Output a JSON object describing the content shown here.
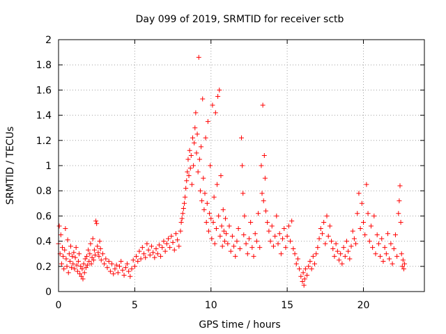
{
  "chart_data": {
    "type": "scatter",
    "title": "Day 099 of 2019, SRMTID for receiver sctb",
    "xlabel": "GPS time / hours",
    "ylabel": "SRMTID / TECUs",
    "xlim": [
      0,
      24
    ],
    "ylim": [
      0,
      2
    ],
    "xticks": [
      0,
      5,
      10,
      15,
      20
    ],
    "xtick_labels": [
      "0",
      "5",
      "10",
      "15",
      "20"
    ],
    "yticks": [
      0,
      0.2,
      0.4,
      0.6,
      0.8,
      1,
      1.2,
      1.4,
      1.6,
      1.8,
      2
    ],
    "ytick_labels": [
      "0",
      "0.2",
      "0.4",
      "0.6",
      "0.8",
      "1",
      "1.2",
      "1.4",
      "1.6",
      "1.8",
      "2"
    ],
    "grid": true,
    "marker": "+",
    "color": "#ff0000",
    "series": [
      {
        "name": "SRMTID",
        "points": [
          [
            0.0,
            0.38
          ],
          [
            0.05,
            0.52
          ],
          [
            0.1,
            0.3
          ],
          [
            0.15,
            0.45
          ],
          [
            0.2,
            0.22
          ],
          [
            0.25,
            0.35
          ],
          [
            0.3,
            0.28
          ],
          [
            0.35,
            0.18
          ],
          [
            0.4,
            0.33
          ],
          [
            0.45,
            0.5
          ],
          [
            0.5,
            0.26
          ],
          [
            0.55,
            0.2
          ],
          [
            0.6,
            0.41
          ],
          [
            0.65,
            0.15
          ],
          [
            0.7,
            0.3
          ],
          [
            0.75,
            0.24
          ],
          [
            0.8,
            0.36
          ],
          [
            0.85,
            0.19
          ],
          [
            0.9,
            0.28
          ],
          [
            0.95,
            0.22
          ],
          [
            1.0,
            0.31
          ],
          [
            1.05,
            0.18
          ],
          [
            1.1,
            0.27
          ],
          [
            1.15,
            0.35
          ],
          [
            1.2,
            0.21
          ],
          [
            1.25,
            0.16
          ],
          [
            1.3,
            0.24
          ],
          [
            1.35,
            0.3
          ],
          [
            1.4,
            0.14
          ],
          [
            1.45,
            0.2
          ],
          [
            1.5,
            0.12
          ],
          [
            1.55,
            0.18
          ],
          [
            1.6,
            0.1
          ],
          [
            1.65,
            0.22
          ],
          [
            1.7,
            0.15
          ],
          [
            1.75,
            0.26
          ],
          [
            1.8,
            0.19
          ],
          [
            1.85,
            0.28
          ],
          [
            1.9,
            0.21
          ],
          [
            1.95,
            0.33
          ],
          [
            2.0,
            0.24
          ],
          [
            2.05,
            0.3
          ],
          [
            2.1,
            0.38
          ],
          [
            2.15,
            0.22
          ],
          [
            2.2,
            0.27
          ],
          [
            2.25,
            0.42
          ],
          [
            2.3,
            0.25
          ],
          [
            2.35,
            0.33
          ],
          [
            2.4,
            0.29
          ],
          [
            2.45,
            0.56
          ],
          [
            2.5,
            0.54
          ],
          [
            2.55,
            0.36
          ],
          [
            2.6,
            0.31
          ],
          [
            2.65,
            0.28
          ],
          [
            2.7,
            0.4
          ],
          [
            2.75,
            0.34
          ],
          [
            2.8,
            0.25
          ],
          [
            2.9,
            0.3
          ],
          [
            3.0,
            0.22
          ],
          [
            3.1,
            0.26
          ],
          [
            3.2,
            0.19
          ],
          [
            3.3,
            0.24
          ],
          [
            3.4,
            0.16
          ],
          [
            3.5,
            0.22
          ],
          [
            3.6,
            0.14
          ],
          [
            3.7,
            0.18
          ],
          [
            3.8,
            0.21
          ],
          [
            3.9,
            0.15
          ],
          [
            4.0,
            0.2
          ],
          [
            4.1,
            0.24
          ],
          [
            4.2,
            0.17
          ],
          [
            4.3,
            0.13
          ],
          [
            4.4,
            0.19
          ],
          [
            4.5,
            0.22
          ],
          [
            4.6,
            0.16
          ],
          [
            4.7,
            0.12
          ],
          [
            4.8,
            0.18
          ],
          [
            4.9,
            0.25
          ],
          [
            5.0,
            0.2
          ],
          [
            5.1,
            0.28
          ],
          [
            5.2,
            0.24
          ],
          [
            5.3,
            0.32
          ],
          [
            5.4,
            0.26
          ],
          [
            5.5,
            0.35
          ],
          [
            5.6,
            0.3
          ],
          [
            5.7,
            0.27
          ],
          [
            5.8,
            0.38
          ],
          [
            5.9,
            0.33
          ],
          [
            6.0,
            0.29
          ],
          [
            6.1,
            0.36
          ],
          [
            6.2,
            0.31
          ],
          [
            6.3,
            0.27
          ],
          [
            6.4,
            0.34
          ],
          [
            6.5,
            0.3
          ],
          [
            6.6,
            0.37
          ],
          [
            6.7,
            0.28
          ],
          [
            6.8,
            0.35
          ],
          [
            6.9,
            0.4
          ],
          [
            7.0,
            0.32
          ],
          [
            7.1,
            0.38
          ],
          [
            7.2,
            0.42
          ],
          [
            7.3,
            0.35
          ],
          [
            7.4,
            0.44
          ],
          [
            7.5,
            0.39
          ],
          [
            7.6,
            0.33
          ],
          [
            7.7,
            0.46
          ],
          [
            7.8,
            0.41
          ],
          [
            7.9,
            0.36
          ],
          [
            8.0,
            0.48
          ],
          [
            8.05,
            0.55
          ],
          [
            8.1,
            0.58
          ],
          [
            8.15,
            0.62
          ],
          [
            8.2,
            0.66
          ],
          [
            8.25,
            0.7
          ],
          [
            8.3,
            0.75
          ],
          [
            8.35,
            0.82
          ],
          [
            8.4,
            0.88
          ],
          [
            8.45,
            0.95
          ],
          [
            8.5,
            1.05
          ],
          [
            8.55,
            0.92
          ],
          [
            8.6,
            1.12
          ],
          [
            8.65,
            0.98
          ],
          [
            8.7,
            1.08
          ],
          [
            8.75,
            0.85
          ],
          [
            8.8,
            1.22
          ],
          [
            8.85,
            1.0
          ],
          [
            8.9,
            1.18
          ],
          [
            8.95,
            1.3
          ],
          [
            9.0,
            1.42
          ],
          [
            9.05,
            1.1
          ],
          [
            9.1,
            1.25
          ],
          [
            9.15,
            0.95
          ],
          [
            9.2,
            1.86
          ],
          [
            9.25,
            1.05
          ],
          [
            9.3,
            0.8
          ],
          [
            9.35,
            1.15
          ],
          [
            9.4,
            0.72
          ],
          [
            9.45,
            1.53
          ],
          [
            9.5,
            0.9
          ],
          [
            9.55,
            0.65
          ],
          [
            9.6,
            0.78
          ],
          [
            9.65,
            1.22
          ],
          [
            9.7,
            0.55
          ],
          [
            9.75,
            0.7
          ],
          [
            9.8,
            1.35
          ],
          [
            9.85,
            0.48
          ],
          [
            9.9,
            0.62
          ],
          [
            9.95,
            1.0
          ],
          [
            10.0,
            0.58
          ],
          [
            10.05,
            0.42
          ],
          [
            10.1,
            1.48
          ],
          [
            10.15,
            0.55
          ],
          [
            10.2,
            0.75
          ],
          [
            10.25,
            0.38
          ],
          [
            10.3,
            1.42
          ],
          [
            10.35,
            0.5
          ],
          [
            10.4,
            0.85
          ],
          [
            10.45,
            1.55
          ],
          [
            10.5,
            0.6
          ],
          [
            10.55,
            1.6
          ],
          [
            10.6,
            0.44
          ],
          [
            10.65,
            0.92
          ],
          [
            10.7,
            0.52
          ],
          [
            10.75,
            0.36
          ],
          [
            10.8,
            0.65
          ],
          [
            10.85,
            0.48
          ],
          [
            10.9,
            0.4
          ],
          [
            10.95,
            0.58
          ],
          [
            11.0,
            0.46
          ],
          [
            11.1,
            0.38
          ],
          [
            11.2,
            0.52
          ],
          [
            11.3,
            0.32
          ],
          [
            11.4,
            0.44
          ],
          [
            11.5,
            0.36
          ],
          [
            11.6,
            0.28
          ],
          [
            11.7,
            0.4
          ],
          [
            11.8,
            0.5
          ],
          [
            11.9,
            0.34
          ],
          [
            12.0,
            1.22
          ],
          [
            12.05,
            1.0
          ],
          [
            12.1,
            0.78
          ],
          [
            12.15,
            0.45
          ],
          [
            12.2,
            0.6
          ],
          [
            12.3,
            0.38
          ],
          [
            12.4,
            0.3
          ],
          [
            12.5,
            0.42
          ],
          [
            12.6,
            0.55
          ],
          [
            12.7,
            0.35
          ],
          [
            12.8,
            0.28
          ],
          [
            12.9,
            0.46
          ],
          [
            13.0,
            0.4
          ],
          [
            13.1,
            0.62
          ],
          [
            13.2,
            0.35
          ],
          [
            13.3,
            1.0
          ],
          [
            13.35,
            0.78
          ],
          [
            13.4,
            1.48
          ],
          [
            13.45,
            0.72
          ],
          [
            13.5,
            1.08
          ],
          [
            13.55,
            0.9
          ],
          [
            13.6,
            0.64
          ],
          [
            13.7,
            0.55
          ],
          [
            13.8,
            0.48
          ],
          [
            13.9,
            0.4
          ],
          [
            14.0,
            0.52
          ],
          [
            14.1,
            0.36
          ],
          [
            14.2,
            0.44
          ],
          [
            14.3,
            0.6
          ],
          [
            14.4,
            0.38
          ],
          [
            14.5,
            0.46
          ],
          [
            14.6,
            0.3
          ],
          [
            14.7,
            0.42
          ],
          [
            14.8,
            0.5
          ],
          [
            14.9,
            0.35
          ],
          [
            15.0,
            0.44
          ],
          [
            15.1,
            0.52
          ],
          [
            15.2,
            0.4
          ],
          [
            15.3,
            0.56
          ],
          [
            15.4,
            0.34
          ],
          [
            15.5,
            0.3
          ],
          [
            15.6,
            0.22
          ],
          [
            15.7,
            0.26
          ],
          [
            15.8,
            0.18
          ],
          [
            15.9,
            0.12
          ],
          [
            16.0,
            0.08
          ],
          [
            16.05,
            0.15
          ],
          [
            16.1,
            0.05
          ],
          [
            16.15,
            0.1
          ],
          [
            16.2,
            0.18
          ],
          [
            16.3,
            0.13
          ],
          [
            16.4,
            0.2
          ],
          [
            16.5,
            0.24
          ],
          [
            16.6,
            0.18
          ],
          [
            16.7,
            0.28
          ],
          [
            16.8,
            0.22
          ],
          [
            16.9,
            0.3
          ],
          [
            17.0,
            0.35
          ],
          [
            17.1,
            0.42
          ],
          [
            17.2,
            0.5
          ],
          [
            17.3,
            0.46
          ],
          [
            17.4,
            0.55
          ],
          [
            17.5,
            0.38
          ],
          [
            17.6,
            0.6
          ],
          [
            17.7,
            0.44
          ],
          [
            17.8,
            0.52
          ],
          [
            17.9,
            0.4
          ],
          [
            18.0,
            0.34
          ],
          [
            18.1,
            0.28
          ],
          [
            18.2,
            0.38
          ],
          [
            18.3,
            0.32
          ],
          [
            18.4,
            0.25
          ],
          [
            18.5,
            0.3
          ],
          [
            18.6,
            0.22
          ],
          [
            18.7,
            0.35
          ],
          [
            18.8,
            0.28
          ],
          [
            18.9,
            0.4
          ],
          [
            19.0,
            0.32
          ],
          [
            19.1,
            0.26
          ],
          [
            19.2,
            0.36
          ],
          [
            19.3,
            0.48
          ],
          [
            19.4,
            0.42
          ],
          [
            19.5,
            0.38
          ],
          [
            19.6,
            0.62
          ],
          [
            19.7,
            0.78
          ],
          [
            19.8,
            0.5
          ],
          [
            19.9,
            0.7
          ],
          [
            20.0,
            0.55
          ],
          [
            20.1,
            0.45
          ],
          [
            20.2,
            0.85
          ],
          [
            20.3,
            0.62
          ],
          [
            20.4,
            0.4
          ],
          [
            20.5,
            0.52
          ],
          [
            20.6,
            0.35
          ],
          [
            20.7,
            0.6
          ],
          [
            20.8,
            0.3
          ],
          [
            20.9,
            0.45
          ],
          [
            21.0,
            0.38
          ],
          [
            21.1,
            0.28
          ],
          [
            21.2,
            0.42
          ],
          [
            21.3,
            0.24
          ],
          [
            21.4,
            0.35
          ],
          [
            21.5,
            0.3
          ],
          [
            21.6,
            0.46
          ],
          [
            21.7,
            0.26
          ],
          [
            21.8,
            0.38
          ],
          [
            21.9,
            0.22
          ],
          [
            22.0,
            0.34
          ],
          [
            22.1,
            0.45
          ],
          [
            22.2,
            0.28
          ],
          [
            22.3,
            0.62
          ],
          [
            22.35,
            0.72
          ],
          [
            22.4,
            0.84
          ],
          [
            22.45,
            0.55
          ],
          [
            22.5,
            0.3
          ],
          [
            22.55,
            0.2
          ],
          [
            22.6,
            0.25
          ],
          [
            22.65,
            0.18
          ],
          [
            22.7,
            0.22
          ]
        ]
      }
    ]
  }
}
